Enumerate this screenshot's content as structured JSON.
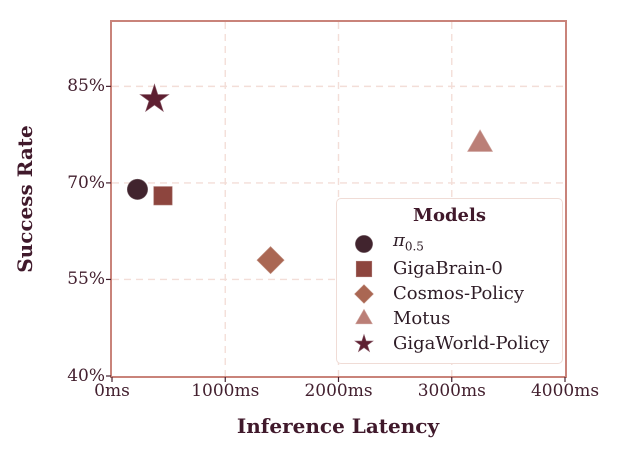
{
  "chart_data": {
    "type": "scatter",
    "title": "",
    "xlabel": "Inference Latency",
    "ylabel": "Success Rate",
    "xlim": [
      0,
      4000
    ],
    "ylim": [
      40,
      95
    ],
    "x_ticks": [
      0,
      1000,
      2000,
      3000,
      4000
    ],
    "x_tick_labels": [
      "0ms",
      "1000ms",
      "2000ms",
      "3000ms",
      "4000ms"
    ],
    "y_ticks": [
      40,
      55,
      70,
      85
    ],
    "y_tick_labels": [
      "40%",
      "55%",
      "70%",
      "85%"
    ],
    "grid": "dashed",
    "legend": {
      "title": "Models",
      "position": "lower-right-inside"
    },
    "colors": {
      "spine": "#c9837a",
      "grid": "#f3ded8",
      "tick": "#43202f",
      "text": "#40192b",
      "legend_border": "#f0dcd6",
      "legend_text": "#2e1c26",
      "background": "#ffffff"
    },
    "series": [
      {
        "label": "π",
        "label_sub": "0.5",
        "marker": "circle",
        "color": "#41242e",
        "x": 225,
        "y": 69
      },
      {
        "label": "GigaBrain-0",
        "marker": "square",
        "color": "#8d453e",
        "x": 450,
        "y": 68
      },
      {
        "label": "Cosmos-Policy",
        "marker": "diamond",
        "color": "#aa6753",
        "x": 1400,
        "y": 58
      },
      {
        "label": "Motus",
        "marker": "triangle",
        "color": "#bb7f77",
        "x": 3250,
        "y": 76
      },
      {
        "label": "GigaWorld-Policy",
        "marker": "star",
        "color": "#5e1f31",
        "x": 375,
        "y": 83
      }
    ]
  }
}
